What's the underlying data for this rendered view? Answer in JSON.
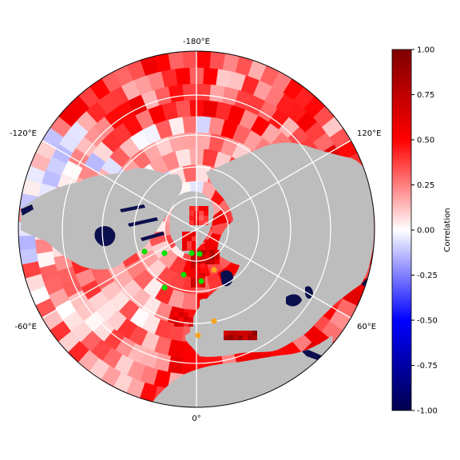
{
  "map": {
    "projection": "north-polar-stereographic",
    "longitude_labels": {
      "top": "-180°E",
      "right_upper": "120°E",
      "right_lower": "60°E",
      "bottom": "0°",
      "left_lower": "-60°E",
      "left_upper": "-120°E"
    },
    "colors": {
      "land": "#bdbdbd",
      "inland_water": "#0b0f4d",
      "graticule": "#ffffff",
      "border": "#000000",
      "marker_green": "#00e000",
      "marker_orange": "#f5a623"
    },
    "markers": {
      "green_count": 7,
      "orange_count": 3
    }
  },
  "colorbar": {
    "label": "Correlation",
    "ticks": [
      "1.00",
      "0.75",
      "0.50",
      "0.25",
      "0.00",
      "-0.25",
      "-0.50",
      "-0.75",
      "-1.00"
    ],
    "range": [
      -1,
      1
    ],
    "colormap": "seismic",
    "colors": [
      "#00004c",
      "#0000ff",
      "#ffffff",
      "#ff0000",
      "#7f0000"
    ]
  }
}
